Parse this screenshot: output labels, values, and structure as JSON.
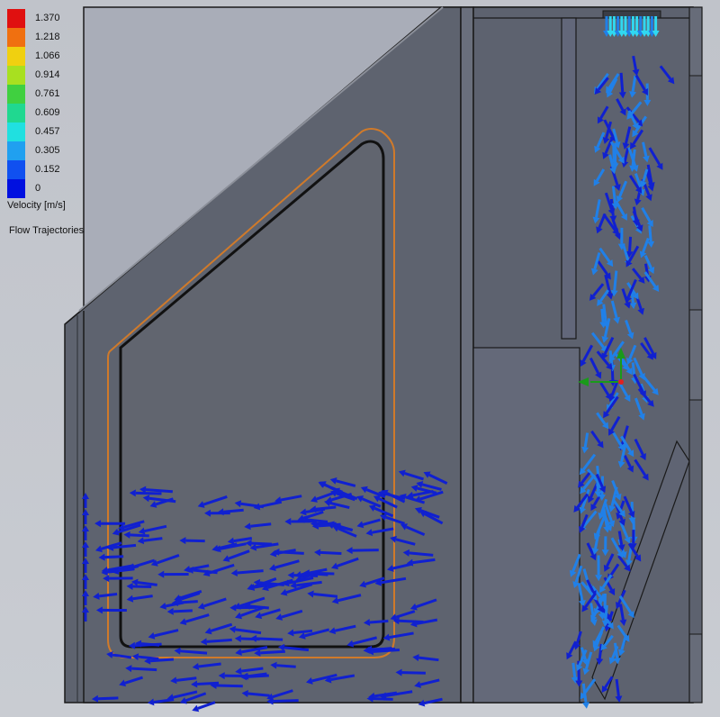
{
  "legend": {
    "title": "Velocity [m/s]",
    "series_label": "Flow Trajectories 1",
    "ticks": [
      "1.370",
      "1.218",
      "1.066",
      "0.914",
      "0.761",
      "0.609",
      "0.457",
      "0.305",
      "0.152",
      "0"
    ],
    "colors": [
      "#e01010",
      "#f07010",
      "#f0d010",
      "#a8e020",
      "#40d040",
      "#20d890",
      "#20e0e0",
      "#20a0f0",
      "#1050f0",
      "#0010e0"
    ]
  },
  "colors": {
    "panel_dark": "#5d626f",
    "panel_mid": "#6a6f7c",
    "panel_light": "#a9adb8",
    "outline": "#1a1a1a",
    "seal_orange": "#d07a2a",
    "arrow_low": "#1020d0",
    "arrow_mid": "#2080e8",
    "arrow_high": "#30d8f0"
  },
  "scene": {
    "triad_axes": [
      "x",
      "y",
      "z"
    ]
  }
}
